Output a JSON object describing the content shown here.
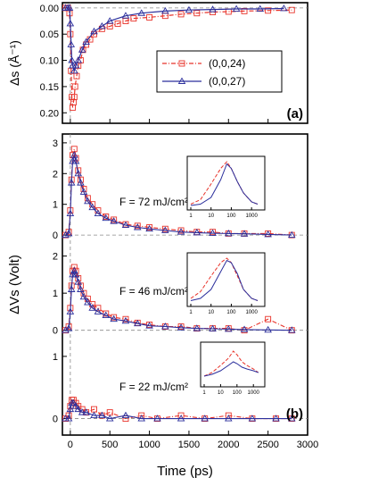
{
  "chart_data": [
    {
      "panel_label": "(a)",
      "type": "scatter",
      "ylabel": "Δs (Å⁻¹)",
      "yticks": [
        "0.00",
        "0.05",
        "0.10",
        "0.15",
        "0.20"
      ],
      "ylim": [
        0.22,
        -0.01
      ],
      "xlim": [
        -100,
        3000
      ],
      "legend": {
        "placement": "top-right",
        "entries": [
          "(0,0,24)",
          "(0,0,27)"
        ]
      },
      "series": [
        {
          "name": "(0,0,24)",
          "color": "#e8332a",
          "marker": "square",
          "line": "dash-dot",
          "x": [
            -60,
            -30,
            -10,
            0,
            10,
            20,
            30,
            40,
            50,
            60,
            80,
            100,
            130,
            160,
            200,
            250,
            300,
            400,
            500,
            600,
            700,
            800,
            1000,
            1200,
            1400,
            1600,
            1800,
            2000,
            2200,
            2500,
            2800
          ],
          "y": [
            0.0,
            0.0,
            0.01,
            0.05,
            0.12,
            0.17,
            0.19,
            0.18,
            0.17,
            0.15,
            0.13,
            0.11,
            0.1,
            0.08,
            0.07,
            0.06,
            0.05,
            0.04,
            0.035,
            0.03,
            0.025,
            0.02,
            0.018,
            0.015,
            0.012,
            0.01,
            0.008,
            0.007,
            0.006,
            0.005,
            0.004
          ]
        },
        {
          "name": "(0,0,27)",
          "color": "#2b2f9c",
          "marker": "triangle",
          "line": "solid",
          "x": [
            -60,
            -30,
            -10,
            0,
            10,
            20,
            30,
            50,
            70,
            100,
            150,
            200,
            300,
            400,
            500,
            700,
            900,
            1200,
            1500,
            1800,
            2100,
            2400,
            2700
          ],
          "y": [
            0.0,
            0.0,
            0.0,
            0.03,
            0.07,
            0.1,
            0.11,
            0.12,
            0.11,
            0.1,
            0.08,
            0.065,
            0.045,
            0.035,
            0.025,
            0.015,
            0.01,
            0.006,
            0.004,
            0.003,
            0.002,
            0.002,
            0.001
          ]
        }
      ]
    },
    {
      "panel_label": "(b)",
      "type": "scatter",
      "ylabel": "ΔVs (Volt)",
      "xlabel": "Time (ps)",
      "xlim": [
        -100,
        3000
      ],
      "xticks": [
        "0",
        "500",
        "1000",
        "1500",
        "2000",
        "2500",
        "3000"
      ],
      "subpanels": [
        {
          "annotation": "F = 72 mJ/cm²",
          "yticks": [
            "0",
            "1",
            "2",
            "3"
          ],
          "ylim": [
            -0.2,
            3.2
          ],
          "series": [
            {
              "name": "(0,0,24)",
              "color": "#e8332a",
              "x": [
                -60,
                -20,
                0,
                15,
                30,
                50,
                70,
                100,
                130,
                170,
                220,
                280,
                350,
                450,
                550,
                700,
                850,
                1000,
                1200,
                1400,
                1600,
                1800,
                2000,
                2200,
                2500,
                2800
              ],
              "y": [
                0.0,
                0.1,
                0.8,
                1.8,
                2.6,
                2.8,
                2.5,
                2.1,
                1.8,
                1.5,
                1.2,
                1.0,
                0.8,
                0.6,
                0.5,
                0.35,
                0.3,
                0.25,
                0.2,
                0.15,
                0.1,
                0.1,
                0.05,
                0.05,
                0.05,
                0.0
              ]
            },
            {
              "name": "(0,0,27)",
              "color": "#2b2f9c",
              "x": [
                -60,
                -20,
                0,
                15,
                30,
                50,
                70,
                100,
                130,
                170,
                220,
                280,
                350,
                450,
                550,
                700,
                850,
                1000,
                1200,
                1400,
                1600,
                1800,
                2000,
                2200,
                2500,
                2800
              ],
              "y": [
                0.0,
                0.05,
                0.7,
                1.7,
                2.4,
                2.6,
                2.4,
                2.0,
                1.7,
                1.4,
                1.1,
                0.9,
                0.7,
                0.55,
                0.45,
                0.32,
                0.25,
                0.2,
                0.15,
                0.1,
                0.08,
                0.06,
                0.05,
                0.04,
                0.02,
                0.0
              ]
            }
          ],
          "inset": {
            "xticks": [
              "1",
              "10",
              "100",
              "1000"
            ],
            "series": [
              {
                "name": "(0,0,24)",
                "color": "#e8332a",
                "x": [
                  1,
                  3,
                  10,
                  30,
                  60,
                  100,
                  200,
                  400,
                  1000,
                  2000
                ],
                "y": [
                  0.05,
                  0.15,
                  0.5,
                  0.85,
                  1.0,
                  0.85,
                  0.55,
                  0.3,
                  0.1,
                  0.05
                ]
              },
              {
                "name": "(0,0,27)",
                "color": "#2b2f9c",
                "x": [
                  1,
                  3,
                  10,
                  30,
                  60,
                  100,
                  200,
                  400,
                  1000,
                  2000
                ],
                "y": [
                  0.02,
                  0.05,
                  0.2,
                  0.6,
                  0.95,
                  0.85,
                  0.55,
                  0.3,
                  0.1,
                  0.05
                ]
              }
            ]
          }
        },
        {
          "annotation": "F = 46 mJ/cm²",
          "yticks": [
            "0",
            "1",
            "2"
          ],
          "ylim": [
            -0.2,
            2.4
          ],
          "series": [
            {
              "name": "(0,0,24)",
              "color": "#e8332a",
              "x": [
                -60,
                -20,
                0,
                15,
                30,
                50,
                70,
                100,
                130,
                170,
                220,
                280,
                350,
                450,
                550,
                700,
                850,
                1000,
                1200,
                1400,
                1600,
                1800,
                2000,
                2200,
                2500,
                2800
              ],
              "y": [
                0.0,
                0.1,
                0.6,
                1.2,
                1.6,
                1.7,
                1.6,
                1.4,
                1.2,
                1.0,
                0.85,
                0.7,
                0.6,
                0.45,
                0.35,
                0.3,
                0.2,
                0.15,
                0.1,
                0.1,
                0.05,
                0.05,
                0.05,
                0.0,
                0.3,
                0.0
              ]
            },
            {
              "name": "(0,0,27)",
              "color": "#2b2f9c",
              "x": [
                -60,
                -20,
                0,
                15,
                30,
                50,
                70,
                100,
                130,
                170,
                220,
                280,
                350,
                450,
                550,
                700,
                850,
                1000,
                1200,
                1400,
                1600,
                1800,
                2000,
                2200,
                2500,
                2800
              ],
              "y": [
                0.0,
                0.05,
                0.5,
                1.1,
                1.5,
                1.6,
                1.5,
                1.3,
                1.1,
                0.9,
                0.75,
                0.6,
                0.5,
                0.4,
                0.3,
                0.25,
                0.18,
                0.12,
                0.1,
                0.07,
                0.05,
                0.04,
                0.03,
                0.02,
                0.01,
                0.0
              ]
            }
          ],
          "inset": {
            "xticks": [
              "1",
              "10",
              "100",
              "1000"
            ],
            "series": [
              {
                "name": "(0,0,24)",
                "color": "#e8332a",
                "x": [
                  1,
                  3,
                  10,
                  30,
                  60,
                  100,
                  200,
                  400,
                  1000,
                  2000
                ],
                "y": [
                  0.1,
                  0.25,
                  0.6,
                  0.9,
                  1.0,
                  0.9,
                  0.6,
                  0.3,
                  0.1,
                  0.05
                ]
              },
              {
                "name": "(0,0,27)",
                "color": "#2b2f9c",
                "x": [
                  1,
                  3,
                  10,
                  30,
                  60,
                  100,
                  200,
                  400,
                  1000,
                  2000
                ],
                "y": [
                  0.05,
                  0.1,
                  0.3,
                  0.7,
                  0.95,
                  0.9,
                  0.65,
                  0.3,
                  0.1,
                  0.05
                ]
              }
            ]
          }
        },
        {
          "annotation": "F = 22 mJ/cm²",
          "yticks": [
            "0",
            "1"
          ],
          "ylim": [
            -0.25,
            1.3
          ],
          "series": [
            {
              "name": "(0,0,24)",
              "color": "#e8332a",
              "x": [
                -60,
                -20,
                0,
                20,
                40,
                70,
                100,
                150,
                200,
                300,
                400,
                500,
                700,
                900,
                1100,
                1400,
                1700,
                2000,
                2300,
                2600,
                2800
              ],
              "y": [
                0.0,
                0.05,
                0.2,
                0.3,
                0.3,
                0.25,
                0.2,
                0.15,
                0.1,
                0.15,
                0.05,
                0.1,
                0.0,
                0.05,
                0.0,
                0.05,
                0.0,
                0.05,
                0.0,
                0.0,
                0.0
              ]
            },
            {
              "name": "(0,0,27)",
              "color": "#2b2f9c",
              "x": [
                -60,
                -20,
                0,
                20,
                40,
                70,
                100,
                150,
                200,
                300,
                400,
                500,
                700,
                900,
                1100,
                1400,
                1700,
                2000,
                2300,
                2600,
                2800
              ],
              "y": [
                0.0,
                0.0,
                0.15,
                0.25,
                0.25,
                0.2,
                0.15,
                0.1,
                0.1,
                0.05,
                0.05,
                0.0,
                0.05,
                0.0,
                0.0,
                0.0,
                0.0,
                0.0,
                0.0,
                0.0,
                0.0
              ]
            }
          ],
          "inset": {
            "xticks": [
              "1",
              "10",
              "100",
              "1000"
            ],
            "series": [
              {
                "name": "(0,0,24)",
                "color": "#e8332a",
                "x": [
                  1,
                  3,
                  10,
                  30,
                  60,
                  100,
                  200,
                  400,
                  1000,
                  2000
                ],
                "y": [
                  0.2,
                  0.3,
                  0.5,
                  0.7,
                  0.9,
                  0.8,
                  0.6,
                  0.5,
                  0.4,
                  0.3
                ]
              },
              {
                "name": "(0,0,27)",
                "color": "#2b2f9c",
                "x": [
                  1,
                  3,
                  10,
                  30,
                  60,
                  100,
                  200,
                  400,
                  1000,
                  2000
                ],
                "y": [
                  0.2,
                  0.25,
                  0.35,
                  0.5,
                  0.6,
                  0.55,
                  0.45,
                  0.4,
                  0.35,
                  0.3
                ]
              }
            ]
          }
        }
      ]
    }
  ]
}
